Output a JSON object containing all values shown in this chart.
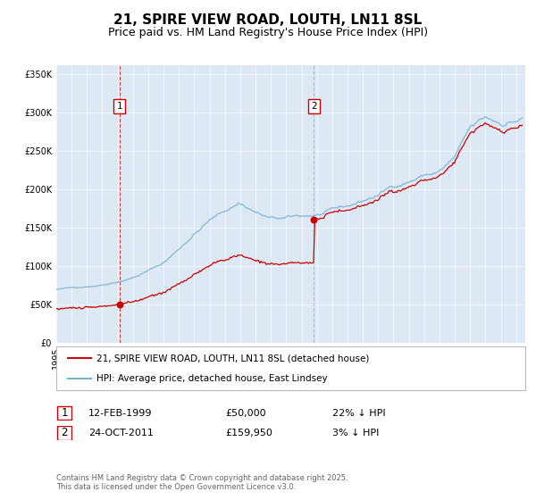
{
  "title": "21, SPIRE VIEW ROAD, LOUTH, LN11 8SL",
  "subtitle": "Price paid vs. HM Land Registry's House Price Index (HPI)",
  "legend_label_red": "21, SPIRE VIEW ROAD, LOUTH, LN11 8SL (detached house)",
  "legend_label_blue": "HPI: Average price, detached house, East Lindsey",
  "annotation1_date": "12-FEB-1999",
  "annotation1_price": "£50,000",
  "annotation1_hpi": "22% ↓ HPI",
  "annotation1_year": 1999.12,
  "annotation1_value": 50000,
  "annotation2_date": "24-OCT-2011",
  "annotation2_price": "£159,950",
  "annotation2_hpi": "3% ↓ HPI",
  "annotation2_year": 2011.81,
  "annotation2_value": 159950,
  "ylabel_ticks": [
    "£0",
    "£50K",
    "£100K",
    "£150K",
    "£200K",
    "£250K",
    "£300K",
    "£350K"
  ],
  "ytick_vals": [
    0,
    50000,
    100000,
    150000,
    200000,
    250000,
    300000,
    350000
  ],
  "red_color": "#cc0000",
  "blue_color": "#7aafd4",
  "bg_color": "#dce9f5",
  "plot_bg": "#ffffff",
  "footer": "Contains HM Land Registry data © Crown copyright and database right 2025.\nThis data is licensed under the Open Government Licence v3.0.",
  "title_fontsize": 11,
  "subtitle_fontsize": 9,
  "tick_fontsize": 7
}
